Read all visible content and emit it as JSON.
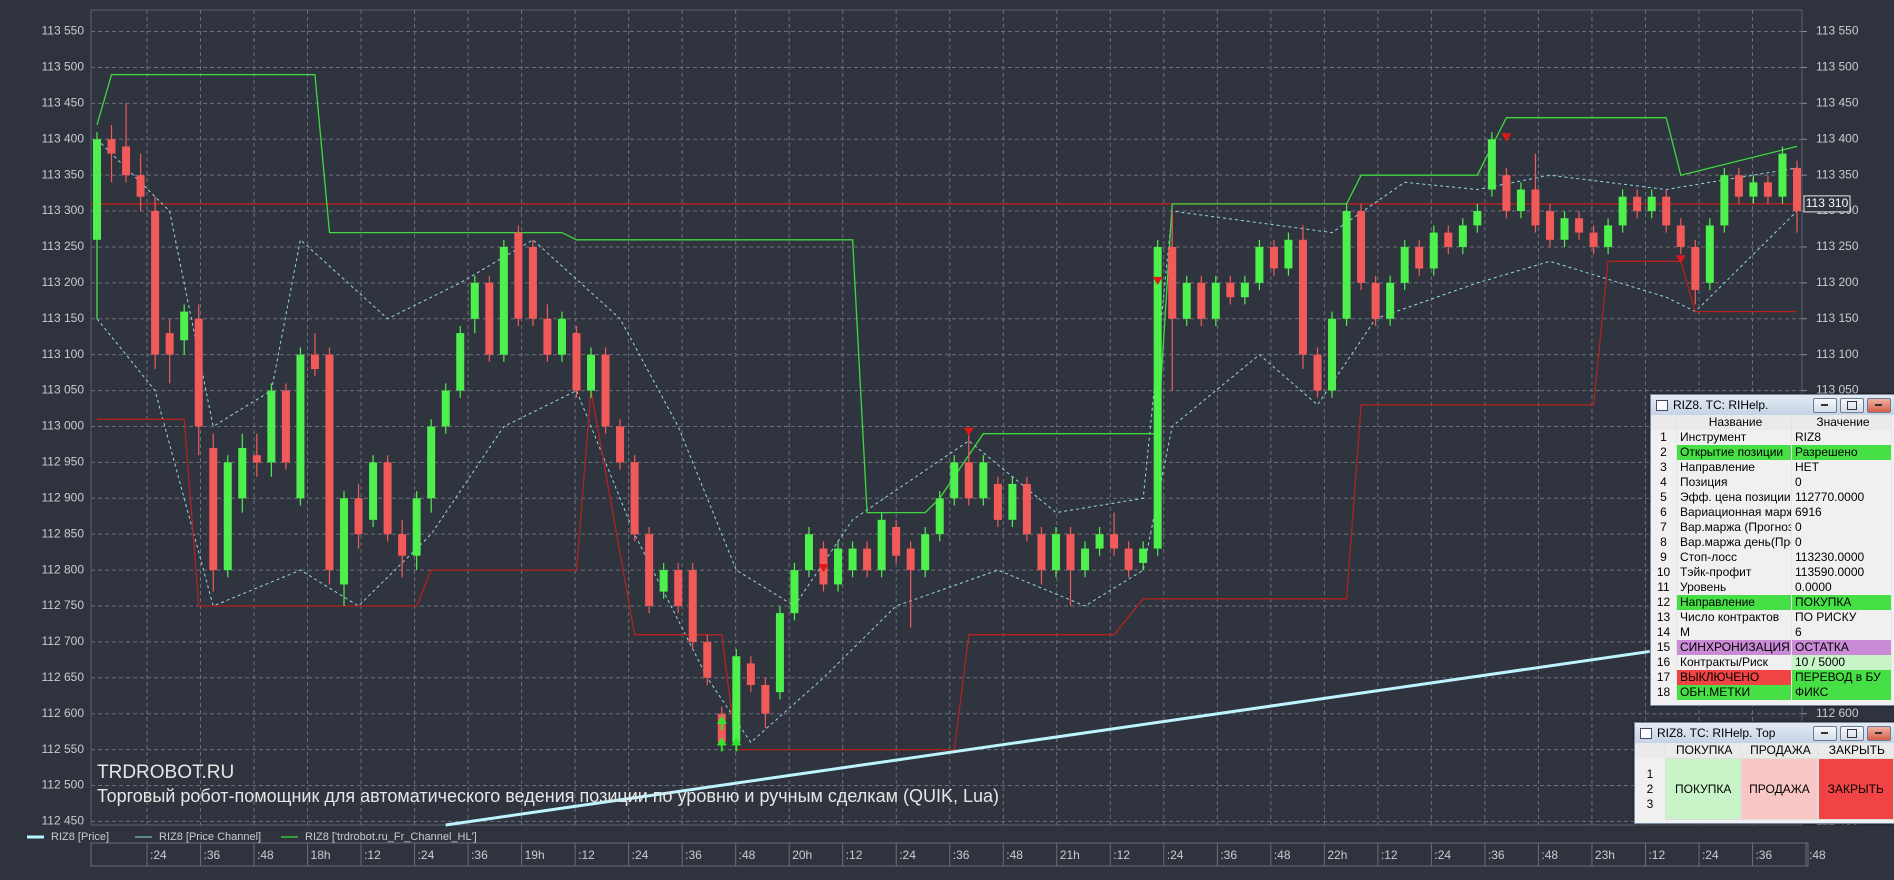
{
  "chart_data": {
    "type": "candlestick",
    "watermark": "TRDROBOT.RU",
    "subtitle": "Торговый робот-помощник для автоматического ведения позиции по уровню и ручным сделкам (QUIK, Lua)",
    "ylim": [
      112445,
      113580
    ],
    "yticks": [
      {
        "value": 112450,
        "label": "112 450"
      },
      {
        "value": 112500,
        "label": "112 500"
      },
      {
        "value": 112550,
        "label": "112 550"
      },
      {
        "value": 112600,
        "label": "112 600"
      },
      {
        "value": 112650,
        "label": "112 650"
      },
      {
        "value": 112700,
        "label": "112 700"
      },
      {
        "value": 112750,
        "label": "112 750"
      },
      {
        "value": 112800,
        "label": "112 800"
      },
      {
        "value": 112850,
        "label": "112 850"
      },
      {
        "value": 112900,
        "label": "112 900"
      },
      {
        "value": 112950,
        "label": "112 950"
      },
      {
        "value": 113000,
        "label": "113 000"
      },
      {
        "value": 113050,
        "label": "113 050"
      },
      {
        "value": 113100,
        "label": "113 100"
      },
      {
        "value": 113150,
        "label": "113 150"
      },
      {
        "value": 113200,
        "label": "113 200"
      },
      {
        "value": 113250,
        "label": "113 250"
      },
      {
        "value": 113300,
        "label": "113 300"
      },
      {
        "value": 113350,
        "label": "113 350"
      },
      {
        "value": 113400,
        "label": "113 400"
      },
      {
        "value": 113450,
        "label": "113 450"
      },
      {
        "value": 113500,
        "label": "113 500"
      },
      {
        "value": 113550,
        "label": "113 550"
      }
    ],
    "x_tick_labels": [
      ":24",
      ":36",
      ":48",
      "18h",
      ":12",
      ":24",
      ":36",
      "19h",
      ":12",
      ":24",
      ":36",
      ":48",
      "20h",
      ":12",
      ":24",
      ":36",
      ":48",
      "21h",
      ":12",
      ":24",
      ":36",
      ":48",
      "22h",
      ":12",
      ":24",
      ":36",
      ":48",
      "23h",
      ":12",
      ":24",
      ":36",
      ":48"
    ],
    "grid": true,
    "up_color": "#4df04d",
    "down_color": "#f25a5a",
    "candles": [
      [
        113260,
        113410,
        113150,
        113400
      ],
      [
        113400,
        113420,
        113340,
        113380
      ],
      [
        113390,
        113450,
        113340,
        113350
      ],
      [
        113350,
        113380,
        113300,
        113320
      ],
      [
        113300,
        113320,
        113080,
        113100
      ],
      [
        113130,
        113150,
        113060,
        113100
      ],
      [
        113120,
        113170,
        113100,
        113160
      ],
      [
        113150,
        113170,
        112960,
        113000
      ],
      [
        112970,
        112990,
        112770,
        112800
      ],
      [
        112800,
        112960,
        112790,
        112950
      ],
      [
        112900,
        112990,
        112880,
        112970
      ],
      [
        112960,
        112990,
        112930,
        112950
      ],
      [
        112950,
        113060,
        112930,
        113050
      ],
      [
        113050,
        113060,
        112940,
        112950
      ],
      [
        112900,
        113110,
        112890,
        113100
      ],
      [
        113100,
        113130,
        113070,
        113080
      ],
      [
        113100,
        113110,
        112780,
        112800
      ],
      [
        112780,
        112910,
        112750,
        112900
      ],
      [
        112900,
        112920,
        112830,
        112850
      ],
      [
        112870,
        112960,
        112860,
        112950
      ],
      [
        112950,
        112960,
        112840,
        112850
      ],
      [
        112850,
        112870,
        112790,
        112820
      ],
      [
        112820,
        112910,
        112800,
        112900
      ],
      [
        112900,
        113010,
        112880,
        113000
      ],
      [
        113000,
        113060,
        112990,
        113050
      ],
      [
        113050,
        113140,
        113040,
        113130
      ],
      [
        113150,
        113210,
        113130,
        113200
      ],
      [
        113200,
        113210,
        113090,
        113100
      ],
      [
        113100,
        113260,
        113090,
        113250
      ],
      [
        113270,
        113280,
        113140,
        113150
      ],
      [
        113250,
        113260,
        113140,
        113150
      ],
      [
        113150,
        113170,
        113090,
        113100
      ],
      [
        113100,
        113160,
        113090,
        113150
      ],
      [
        113130,
        113140,
        113040,
        113050
      ],
      [
        113050,
        113110,
        113040,
        113100
      ],
      [
        113100,
        113110,
        112990,
        113000
      ],
      [
        113000,
        113010,
        112940,
        112950
      ],
      [
        112950,
        112960,
        112840,
        112850
      ],
      [
        112850,
        112860,
        112740,
        112750
      ],
      [
        112770,
        112810,
        112760,
        112800
      ],
      [
        112800,
        112810,
        112740,
        112750
      ],
      [
        112800,
        112810,
        112690,
        112700
      ],
      [
        112700,
        112710,
        112640,
        112650
      ],
      [
        112600,
        112610,
        112550,
        112560
      ],
      [
        112560,
        112690,
        112550,
        112680
      ],
      [
        112670,
        112680,
        112630,
        112640
      ],
      [
        112640,
        112650,
        112580,
        112600
      ],
      [
        112630,
        112750,
        112620,
        112740
      ],
      [
        112740,
        112810,
        112730,
        112800
      ],
      [
        112800,
        112860,
        112790,
        112850
      ],
      [
        112830,
        112840,
        112770,
        112780
      ],
      [
        112780,
        112840,
        112770,
        112830
      ],
      [
        112800,
        112840,
        112790,
        112830
      ],
      [
        112830,
        112840,
        112790,
        112800
      ],
      [
        112800,
        112880,
        112790,
        112870
      ],
      [
        112860,
        112870,
        112810,
        112820
      ],
      [
        112830,
        112840,
        112720,
        112800
      ],
      [
        112800,
        112860,
        112790,
        112850
      ],
      [
        112850,
        112910,
        112840,
        112900
      ],
      [
        112900,
        112960,
        112890,
        112950
      ],
      [
        112950,
        112990,
        112890,
        112900
      ],
      [
        112900,
        112960,
        112890,
        112950
      ],
      [
        112920,
        112930,
        112860,
        112870
      ],
      [
        112870,
        112930,
        112860,
        112920
      ],
      [
        112920,
        112930,
        112840,
        112850
      ],
      [
        112850,
        112860,
        112780,
        112800
      ],
      [
        112800,
        112860,
        112790,
        112850
      ],
      [
        112850,
        112860,
        112750,
        112800
      ],
      [
        112800,
        112840,
        112790,
        112830
      ],
      [
        112830,
        112860,
        112820,
        112850
      ],
      [
        112850,
        112880,
        112820,
        112830
      ],
      [
        112830,
        112840,
        112790,
        112800
      ],
      [
        112810,
        112840,
        112800,
        112830
      ],
      [
        112830,
        113260,
        112820,
        113250
      ],
      [
        113250,
        113300,
        113050,
        113150
      ],
      [
        113150,
        113210,
        113140,
        113200
      ],
      [
        113200,
        113210,
        113140,
        113150
      ],
      [
        113150,
        113210,
        113140,
        113200
      ],
      [
        113200,
        113210,
        113170,
        113180
      ],
      [
        113180,
        113210,
        113170,
        113200
      ],
      [
        113200,
        113260,
        113190,
        113250
      ],
      [
        113250,
        113260,
        113210,
        113220
      ],
      [
        113220,
        113270,
        113210,
        113260
      ],
      [
        113260,
        113280,
        113080,
        113100
      ],
      [
        113100,
        113110,
        113040,
        113050
      ],
      [
        113050,
        113160,
        113040,
        113150
      ],
      [
        113150,
        113310,
        113140,
        113300
      ],
      [
        113300,
        113310,
        113190,
        113200
      ],
      [
        113200,
        113210,
        113140,
        113150
      ],
      [
        113150,
        113210,
        113140,
        113200
      ],
      [
        113200,
        113260,
        113190,
        113250
      ],
      [
        113250,
        113260,
        113210,
        113220
      ],
      [
        113220,
        113280,
        113210,
        113270
      ],
      [
        113270,
        113280,
        113240,
        113250
      ],
      [
        113250,
        113290,
        113240,
        113280
      ],
      [
        113280,
        113310,
        113270,
        113300
      ],
      [
        113330,
        113410,
        113320,
        113400
      ],
      [
        113350,
        113360,
        113290,
        113300
      ],
      [
        113300,
        113340,
        113290,
        113330
      ],
      [
        113330,
        113380,
        113270,
        113280
      ],
      [
        113300,
        113310,
        113250,
        113260
      ],
      [
        113260,
        113300,
        113250,
        113290
      ],
      [
        113290,
        113300,
        113260,
        113270
      ],
      [
        113270,
        113280,
        113240,
        113250
      ],
      [
        113250,
        113290,
        113240,
        113280
      ],
      [
        113280,
        113330,
        113270,
        113320
      ],
      [
        113320,
        113330,
        113290,
        113300
      ],
      [
        113300,
        113330,
        113290,
        113320
      ],
      [
        113320,
        113330,
        113270,
        113280
      ],
      [
        113280,
        113290,
        113240,
        113250
      ],
      [
        113250,
        113260,
        113170,
        113190
      ],
      [
        113200,
        113290,
        113190,
        113280
      ],
      [
        113280,
        113360,
        113270,
        113350
      ],
      [
        113350,
        113360,
        113310,
        113320
      ],
      [
        113320,
        113350,
        113310,
        113340
      ],
      [
        113340,
        113350,
        113310,
        113320
      ],
      [
        113320,
        113390,
        113310,
        113380
      ],
      [
        113360,
        113370,
        113270,
        113300
      ]
    ],
    "lines": [
      {
        "name": "RIZ8 [Price]",
        "color": "#bdf4ff",
        "width": 3,
        "x": [
          24,
          108
        ],
        "values": [
          112445,
          112690
        ]
      },
      {
        "name": "RIZ8 [Price Channel]",
        "color": "#8fdbe8",
        "width": 1,
        "dashed": true,
        "x": [
          0,
          5,
          8,
          12,
          14,
          20,
          25,
          30,
          36,
          40,
          44,
          48,
          52,
          60,
          66,
          72,
          74,
          85,
          90,
          95,
          100,
          108,
          117
        ],
        "values": [
          113400,
          113300,
          113000,
          113050,
          113260,
          113150,
          113200,
          113260,
          113150,
          113000,
          112800,
          112750,
          112870,
          112980,
          112880,
          112900,
          113300,
          113270,
          113340,
          113330,
          113350,
          113330,
          113360
        ]
      },
      {
        "color": "#8fdbe8",
        "width": 1,
        "dashed": true,
        "x": [
          0,
          4,
          8,
          14,
          18,
          23,
          28,
          33,
          37,
          42,
          45,
          50,
          55,
          62,
          68,
          72,
          74,
          80,
          84,
          88,
          95,
          100,
          108,
          110,
          117
        ],
        "values": [
          113150,
          113050,
          112750,
          112800,
          112750,
          112850,
          113000,
          113050,
          112850,
          112650,
          112560,
          112650,
          112750,
          112800,
          112750,
          112800,
          113000,
          113100,
          113030,
          113150,
          113200,
          113230,
          113180,
          113160,
          113300
        ]
      },
      {
        "name": "RIZ8 ['trdrobot.ru_Fr_Channel_HL']",
        "color": "#3fd93f",
        "width": 1.3,
        "x": [
          0,
          1,
          15,
          16,
          32,
          33,
          52,
          53,
          57,
          58,
          61,
          73,
          74,
          86,
          87,
          95,
          97,
          108,
          109,
          117
        ],
        "values": [
          113420,
          113490,
          113490,
          113270,
          113270,
          113260,
          113260,
          112880,
          112880,
          112900,
          112990,
          112990,
          113310,
          113310,
          113350,
          113350,
          113430,
          113430,
          113350,
          113390
        ]
      },
      {
        "color": "#b3221f",
        "width": 1.3,
        "x": [
          0,
          6,
          7,
          22,
          23,
          33,
          34,
          37,
          43,
          44,
          59,
          60,
          70,
          72,
          86,
          87,
          103,
          104,
          109,
          110,
          117
        ],
        "values": [
          113010,
          113010,
          112750,
          112750,
          112800,
          112800,
          113050,
          112710,
          112710,
          112550,
          112550,
          112710,
          112710,
          112760,
          112760,
          113030,
          113030,
          113230,
          113230,
          113160,
          113160
        ]
      }
    ],
    "level": {
      "value": 113310,
      "label": "113 310",
      "color": "#b3221f"
    },
    "sell_signals": {
      "color": "#e01818",
      "x": [
        50,
        60,
        73,
        97,
        109
      ],
      "values": [
        112800,
        112990,
        113200,
        113400,
        113230
      ]
    },
    "buy_signals": {
      "color": "#2ee82e",
      "x": [
        43,
        43,
        44
      ],
      "values": [
        112590,
        112560,
        112560
      ]
    }
  },
  "params_window": {
    "title": "RIZ8. ТС: RIHelp.",
    "columns": [
      "Название",
      "Значение"
    ],
    "rows": [
      {
        "n": 1,
        "name": "Инструмент",
        "value": "RIZ8"
      },
      {
        "n": 2,
        "name": "Открытие позиции",
        "value": "Разрешено",
        "name_bg": "#46e046",
        "value_bg": "#46e046"
      },
      {
        "n": 3,
        "name": "Направление",
        "value": "НЕТ"
      },
      {
        "n": 4,
        "name": "Позиция",
        "value": "0"
      },
      {
        "n": 5,
        "name": "Эфф. цена позиции",
        "value": "112770.0000"
      },
      {
        "n": 6,
        "name": "Вариационная маржа",
        "value": "6916"
      },
      {
        "n": 7,
        "name": "Вар.маржа (Прогноз)",
        "value": "0"
      },
      {
        "n": 8,
        "name": "Вар.маржа день(Прог",
        "value": "0"
      },
      {
        "n": 9,
        "name": "Стоп-лосс",
        "value": "113230.0000"
      },
      {
        "n": 10,
        "name": "Тэйк-профит",
        "value": "113590.0000"
      },
      {
        "n": 11,
        "name": "Уровень",
        "value": "0.0000"
      },
      {
        "n": 12,
        "name": "Направление",
        "value": "ПОКУПКА",
        "name_bg": "#46e046",
        "value_bg": "#46e046"
      },
      {
        "n": 13,
        "name": "Число контрактов",
        "value": "ПО РИСКУ"
      },
      {
        "n": 14,
        "name": "М",
        "value": "6"
      },
      {
        "n": 15,
        "name": "СИНХРОНИЗАЦИЯ",
        "value": "ОСТАТКА",
        "name_bg": "#c98ad6",
        "value_bg": "#c98ad6"
      },
      {
        "n": 16,
        "name": "Контракты/Риск",
        "value": "10 / 5000",
        "value_bg": "#c8f5c8"
      },
      {
        "n": 17,
        "name": "ВЫКЛЮЧЕНО",
        "value": "ПЕРЕВОД в БУ",
        "name_bg": "#f04444",
        "value_bg": "#46e046"
      },
      {
        "n": 18,
        "name": "ОБН.МЕТКИ",
        "value": "ФИКС",
        "name_bg": "#46e046",
        "value_bg": "#46e046"
      }
    ]
  },
  "trade_window": {
    "title": "RIZ8. ТС: RIHelp. Тор",
    "columns": [
      "ПОКУПКА",
      "ПРОДАЖА",
      "ЗАКРЫТЬ"
    ],
    "row_numbers": [
      1,
      2,
      3
    ],
    "buttons": [
      {
        "label": "ПОКУПКА",
        "bg": "#c8f5c8"
      },
      {
        "label": "ПРОДАЖА",
        "bg": "#f9c6c6"
      },
      {
        "label": "ЗАКРЫТЬ",
        "bg": "#f04444"
      }
    ]
  }
}
